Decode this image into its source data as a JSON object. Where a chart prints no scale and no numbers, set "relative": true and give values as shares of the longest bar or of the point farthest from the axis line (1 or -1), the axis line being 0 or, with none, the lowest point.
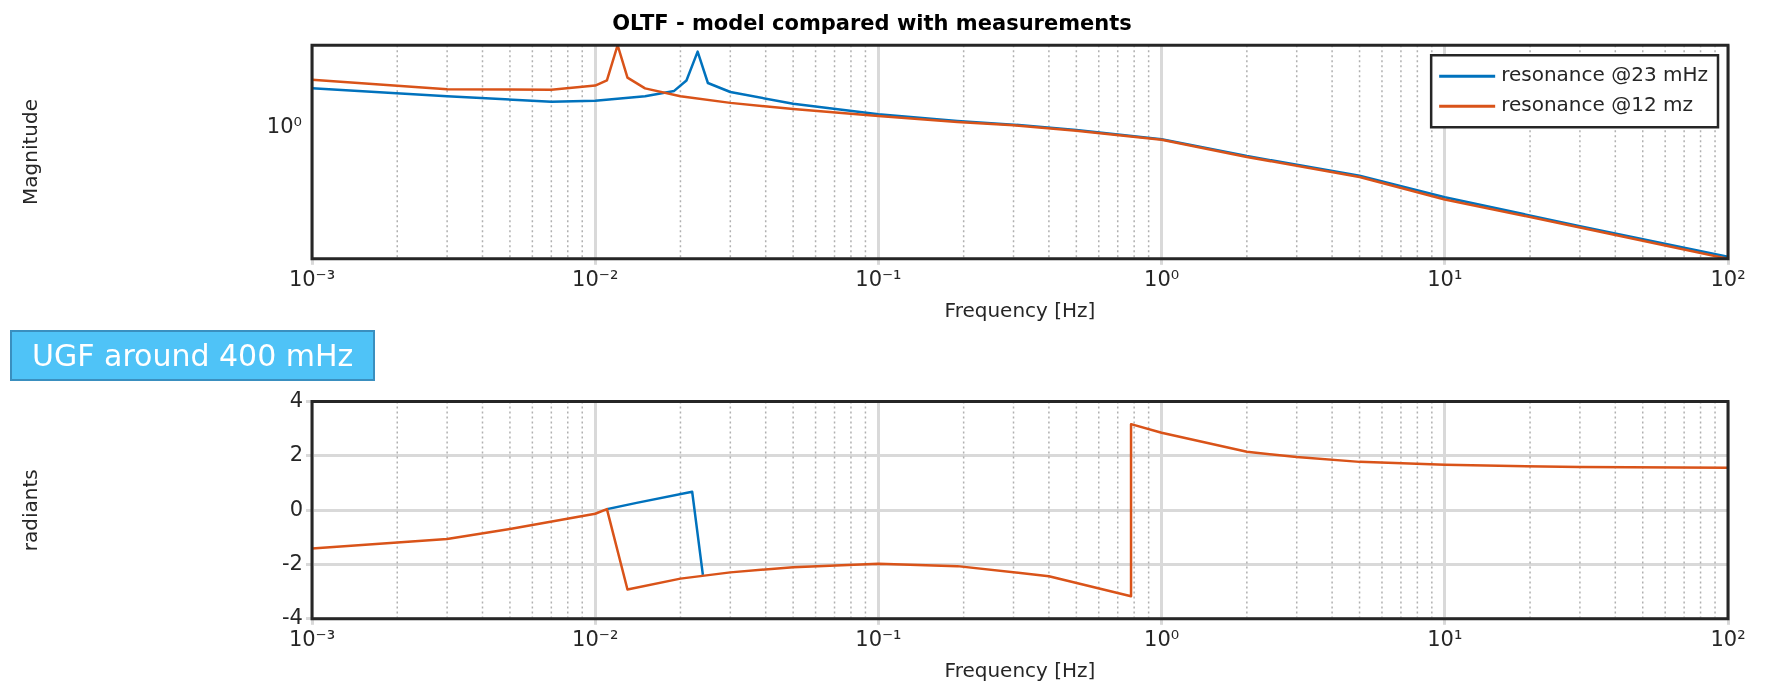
{
  "chart_data": [
    {
      "type": "line",
      "title": "OLTF - model compared with measurements",
      "xlabel": "Frequency [Hz]",
      "ylabel": "Magnitude",
      "log": "x",
      "relative": true,
      "grid": true,
      "legend": "top right",
      "line_style": "solid",
      "marker": "none",
      "xlim": [
        0.001,
        100
      ],
      "xticks": [
        {
          "value": 0.001,
          "label": "10⁻³"
        },
        {
          "value": 0.01,
          "label": "10⁻²"
        },
        {
          "value": 0.1,
          "label": "10⁻¹"
        },
        {
          "value": 1,
          "label": "10⁰"
        },
        {
          "value": 10,
          "label": "10¹"
        },
        {
          "value": 100,
          "label": "10²"
        }
      ],
      "annotations": [
        "UGF around 400 mHz",
        "10⁰"
      ],
      "series": [
        {
          "name": "resonance @23 mHz",
          "color": "#0072bd",
          "x": [
            0.001,
            0.003,
            0.007,
            0.01,
            0.015,
            0.019,
            0.021,
            0.023,
            0.025,
            0.03,
            0.05,
            0.1,
            0.19,
            0.3,
            0.5,
            1,
            2,
            5,
            10,
            30,
            100
          ],
          "values": [
            0.799,
            0.761,
            0.735,
            0.74,
            0.761,
            0.786,
            0.835,
            0.97,
            0.823,
            0.781,
            0.726,
            0.677,
            0.645,
            0.628,
            0.603,
            0.56,
            0.481,
            0.389,
            0.288,
            0.153,
            0.009
          ]
        },
        {
          "name": "resonance @12 mz",
          "color": "#d95319",
          "x": [
            0.001,
            0.003,
            0.007,
            0.01,
            0.011,
            0.012,
            0.013,
            0.015,
            0.02,
            0.03,
            0.05,
            0.1,
            0.19,
            0.3,
            0.5,
            1,
            2,
            5,
            10,
            30,
            100
          ],
          "values": [
            0.838,
            0.794,
            0.791,
            0.811,
            0.835,
            1.0,
            0.848,
            0.798,
            0.761,
            0.73,
            0.701,
            0.669,
            0.641,
            0.625,
            0.6,
            0.557,
            0.477,
            0.383,
            0.278,
            0.147,
            0
          ]
        }
      ]
    },
    {
      "type": "line",
      "xlabel": "Frequency [Hz]",
      "ylabel": "radiants",
      "log": "x",
      "grid": true,
      "line_style": "solid",
      "marker": "none",
      "xlim": [
        0.001,
        100
      ],
      "xticks": [
        {
          "value": 0.001,
          "label": "10⁻³"
        },
        {
          "value": 0.01,
          "label": "10⁻²"
        },
        {
          "value": 0.1,
          "label": "10⁻¹"
        },
        {
          "value": 1,
          "label": "10⁰"
        },
        {
          "value": 10,
          "label": "10¹"
        },
        {
          "value": 100,
          "label": "10²"
        }
      ],
      "ylim": [
        -4,
        4
      ],
      "yticks": [
        -4,
        -2,
        0,
        2,
        4
      ],
      "series": [
        {
          "color": "#0072bd",
          "x": [
            0.011,
            0.014,
            0.022,
            0.024
          ],
          "values": [
            0.04,
            0.27,
            0.68,
            -2.38
          ]
        },
        {
          "color": "#d95319",
          "x": [
            0.001,
            0.003,
            0.005,
            0.01,
            0.011,
            0.013,
            0.02,
            0.03,
            0.05,
            0.1,
            0.19,
            0.4,
            0.78,
            0.78,
            1,
            2,
            3,
            5,
            10,
            30,
            100
          ],
          "values": [
            -1.41,
            -1.06,
            -0.69,
            -0.13,
            0.04,
            -2.92,
            -2.52,
            -2.29,
            -2.1,
            -1.97,
            -2.06,
            -2.43,
            -3.17,
            3.17,
            2.85,
            2.15,
            1.96,
            1.78,
            1.67,
            1.59,
            1.56
          ]
        }
      ]
    }
  ]
}
